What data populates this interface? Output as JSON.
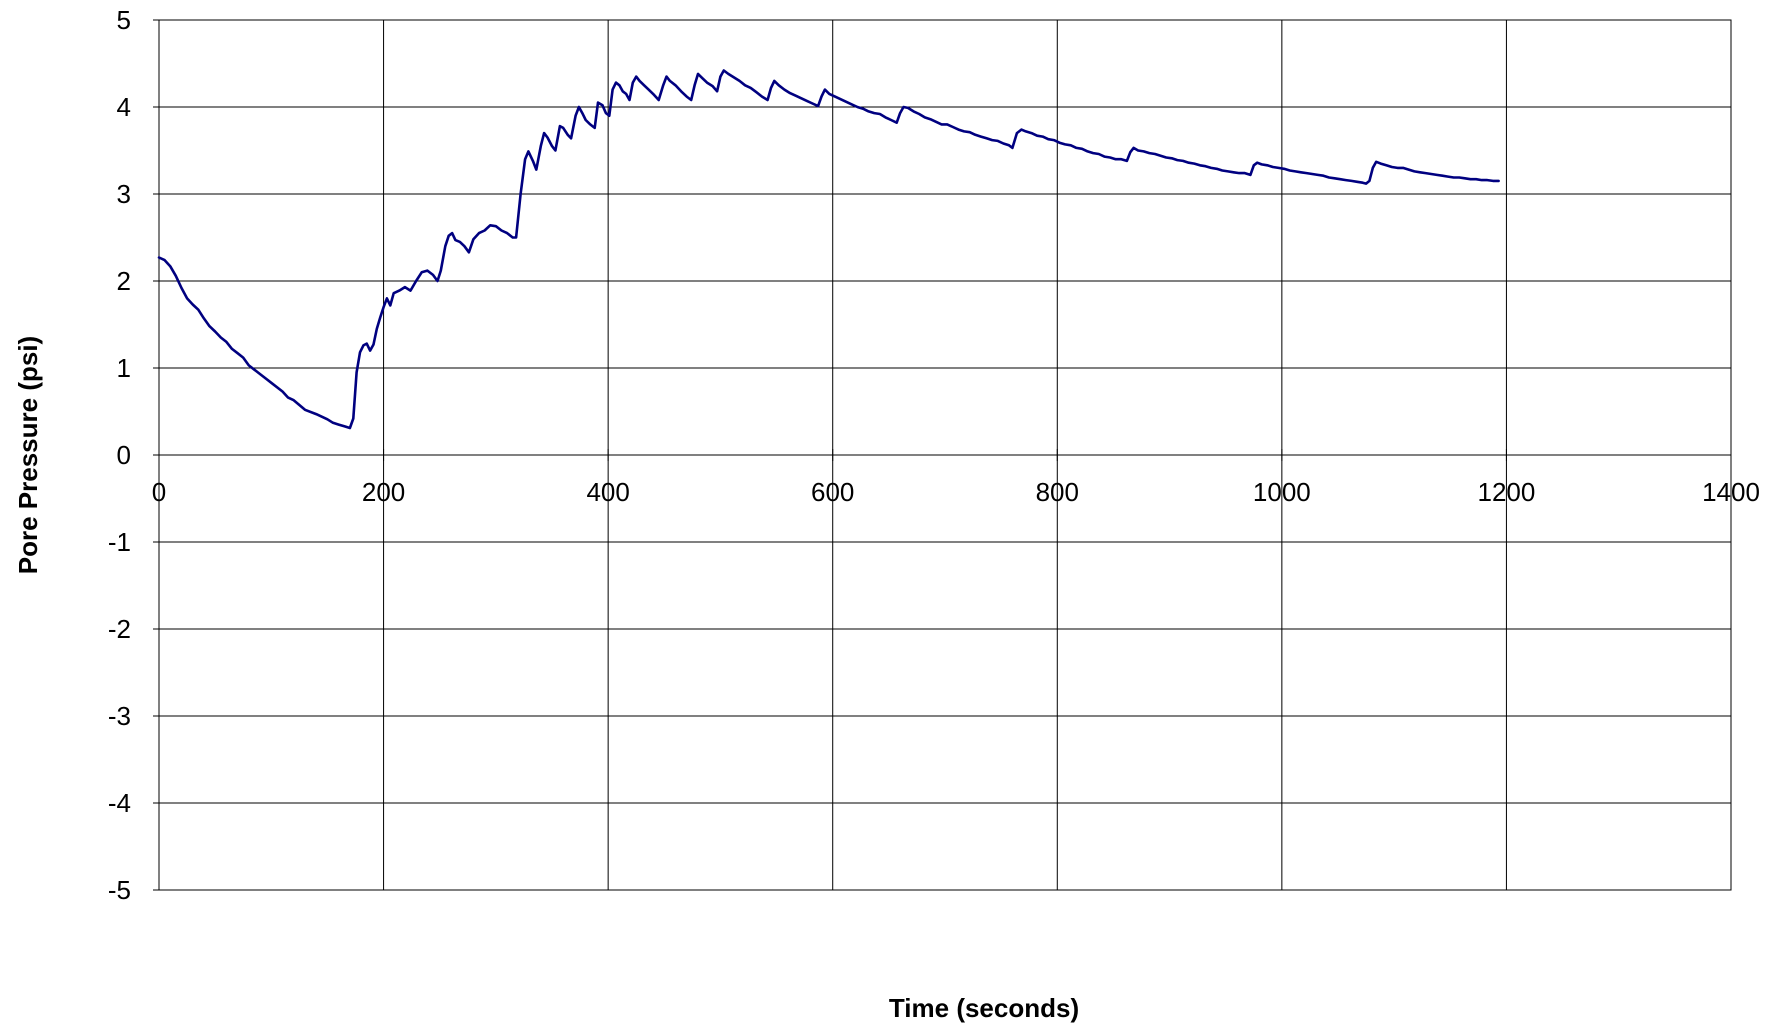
{
  "chart_data": {
    "type": "line",
    "title": "",
    "xlabel": "Time (seconds)",
    "ylabel": "Pore Pressure (psi)",
    "xlim": [
      0,
      1400
    ],
    "ylim": [
      -5,
      5
    ],
    "x_ticks": [
      0,
      200,
      400,
      600,
      800,
      1000,
      1200,
      1400
    ],
    "y_ticks": [
      5,
      4,
      3,
      2,
      1,
      0,
      -1,
      -2,
      -3,
      -4,
      -5
    ],
    "grid": true,
    "legend": "none",
    "series": [
      {
        "color": "#000080",
        "points": [
          [
            0,
            2.27
          ],
          [
            5,
            2.24
          ],
          [
            10,
            2.17
          ],
          [
            15,
            2.06
          ],
          [
            20,
            1.92
          ],
          [
            25,
            1.8
          ],
          [
            30,
            1.73
          ],
          [
            35,
            1.67
          ],
          [
            40,
            1.57
          ],
          [
            45,
            1.48
          ],
          [
            50,
            1.42
          ],
          [
            55,
            1.35
          ],
          [
            60,
            1.3
          ],
          [
            65,
            1.22
          ],
          [
            70,
            1.17
          ],
          [
            75,
            1.12
          ],
          [
            80,
            1.03
          ],
          [
            90,
            0.93
          ],
          [
            100,
            0.83
          ],
          [
            110,
            0.73
          ],
          [
            115,
            0.66
          ],
          [
            120,
            0.63
          ],
          [
            130,
            0.52
          ],
          [
            140,
            0.47
          ],
          [
            150,
            0.41
          ],
          [
            155,
            0.37
          ],
          [
            160,
            0.35
          ],
          [
            165,
            0.33
          ],
          [
            170,
            0.31
          ],
          [
            173,
            0.42
          ],
          [
            176,
            0.95
          ],
          [
            179,
            1.18
          ],
          [
            182,
            1.26
          ],
          [
            185,
            1.28
          ],
          [
            188,
            1.2
          ],
          [
            191,
            1.27
          ],
          [
            194,
            1.45
          ],
          [
            197,
            1.58
          ],
          [
            200,
            1.7
          ],
          [
            203,
            1.8
          ],
          [
            206,
            1.72
          ],
          [
            209,
            1.86
          ],
          [
            214,
            1.89
          ],
          [
            219,
            1.93
          ],
          [
            224,
            1.89
          ],
          [
            229,
            2.0
          ],
          [
            234,
            2.1
          ],
          [
            239,
            2.12
          ],
          [
            244,
            2.07
          ],
          [
            248,
            2.0
          ],
          [
            251,
            2.12
          ],
          [
            255,
            2.4
          ],
          [
            258,
            2.52
          ],
          [
            261,
            2.55
          ],
          [
            264,
            2.47
          ],
          [
            268,
            2.45
          ],
          [
            272,
            2.4
          ],
          [
            276,
            2.33
          ],
          [
            280,
            2.48
          ],
          [
            285,
            2.55
          ],
          [
            290,
            2.58
          ],
          [
            295,
            2.64
          ],
          [
            300,
            2.63
          ],
          [
            305,
            2.58
          ],
          [
            310,
            2.55
          ],
          [
            315,
            2.5
          ],
          [
            318,
            2.5
          ],
          [
            322,
            3.0
          ],
          [
            326,
            3.4
          ],
          [
            329,
            3.49
          ],
          [
            333,
            3.38
          ],
          [
            336,
            3.28
          ],
          [
            340,
            3.55
          ],
          [
            343,
            3.7
          ],
          [
            346,
            3.65
          ],
          [
            350,
            3.55
          ],
          [
            353,
            3.5
          ],
          [
            357,
            3.78
          ],
          [
            360,
            3.76
          ],
          [
            364,
            3.68
          ],
          [
            367,
            3.64
          ],
          [
            371,
            3.9
          ],
          [
            374,
            4.0
          ],
          [
            377,
            3.93
          ],
          [
            380,
            3.85
          ],
          [
            384,
            3.8
          ],
          [
            388,
            3.76
          ],
          [
            391,
            4.05
          ],
          [
            395,
            4.02
          ],
          [
            398,
            3.93
          ],
          [
            401,
            3.9
          ],
          [
            404,
            4.2
          ],
          [
            407,
            4.28
          ],
          [
            410,
            4.25
          ],
          [
            413,
            4.18
          ],
          [
            416,
            4.15
          ],
          [
            419,
            4.08
          ],
          [
            422,
            4.28
          ],
          [
            425,
            4.35
          ],
          [
            428,
            4.3
          ],
          [
            432,
            4.25
          ],
          [
            436,
            4.2
          ],
          [
            440,
            4.15
          ],
          [
            445,
            4.08
          ],
          [
            449,
            4.25
          ],
          [
            452,
            4.35
          ],
          [
            455,
            4.3
          ],
          [
            460,
            4.25
          ],
          [
            465,
            4.18
          ],
          [
            470,
            4.12
          ],
          [
            474,
            4.08
          ],
          [
            477,
            4.25
          ],
          [
            480,
            4.38
          ],
          [
            484,
            4.33
          ],
          [
            488,
            4.28
          ],
          [
            493,
            4.24
          ],
          [
            497,
            4.18
          ],
          [
            500,
            4.35
          ],
          [
            503,
            4.42
          ],
          [
            507,
            4.38
          ],
          [
            512,
            4.34
          ],
          [
            517,
            4.3
          ],
          [
            522,
            4.25
          ],
          [
            527,
            4.22
          ],
          [
            532,
            4.17
          ],
          [
            537,
            4.12
          ],
          [
            542,
            4.08
          ],
          [
            545,
            4.22
          ],
          [
            548,
            4.3
          ],
          [
            552,
            4.25
          ],
          [
            557,
            4.2
          ],
          [
            562,
            4.16
          ],
          [
            567,
            4.13
          ],
          [
            572,
            4.1
          ],
          [
            577,
            4.07
          ],
          [
            582,
            4.04
          ],
          [
            587,
            4.01
          ],
          [
            590,
            4.12
          ],
          [
            593,
            4.2
          ],
          [
            597,
            4.15
          ],
          [
            602,
            4.12
          ],
          [
            607,
            4.09
          ],
          [
            612,
            4.06
          ],
          [
            617,
            4.03
          ],
          [
            622,
            4.0
          ],
          [
            627,
            3.98
          ],
          [
            632,
            3.95
          ],
          [
            637,
            3.93
          ],
          [
            642,
            3.92
          ],
          [
            647,
            3.88
          ],
          [
            652,
            3.85
          ],
          [
            657,
            3.82
          ],
          [
            660,
            3.93
          ],
          [
            663,
            4.0
          ],
          [
            667,
            3.99
          ],
          [
            672,
            3.95
          ],
          [
            677,
            3.92
          ],
          [
            682,
            3.88
          ],
          [
            687,
            3.86
          ],
          [
            692,
            3.83
          ],
          [
            697,
            3.8
          ],
          [
            702,
            3.8
          ],
          [
            707,
            3.77
          ],
          [
            712,
            3.74
          ],
          [
            717,
            3.72
          ],
          [
            722,
            3.71
          ],
          [
            727,
            3.68
          ],
          [
            732,
            3.66
          ],
          [
            737,
            3.64
          ],
          [
            742,
            3.62
          ],
          [
            747,
            3.61
          ],
          [
            752,
            3.58
          ],
          [
            757,
            3.56
          ],
          [
            760,
            3.53
          ],
          [
            764,
            3.7
          ],
          [
            768,
            3.74
          ],
          [
            772,
            3.72
          ],
          [
            777,
            3.7
          ],
          [
            782,
            3.67
          ],
          [
            787,
            3.66
          ],
          [
            792,
            3.63
          ],
          [
            797,
            3.62
          ],
          [
            802,
            3.59
          ],
          [
            807,
            3.57
          ],
          [
            812,
            3.56
          ],
          [
            817,
            3.53
          ],
          [
            822,
            3.52
          ],
          [
            827,
            3.49
          ],
          [
            832,
            3.47
          ],
          [
            837,
            3.46
          ],
          [
            842,
            3.43
          ],
          [
            847,
            3.42
          ],
          [
            852,
            3.4
          ],
          [
            857,
            3.4
          ],
          [
            862,
            3.38
          ],
          [
            865,
            3.48
          ],
          [
            868,
            3.53
          ],
          [
            872,
            3.5
          ],
          [
            877,
            3.49
          ],
          [
            882,
            3.47
          ],
          [
            887,
            3.46
          ],
          [
            892,
            3.44
          ],
          [
            897,
            3.42
          ],
          [
            902,
            3.41
          ],
          [
            907,
            3.39
          ],
          [
            912,
            3.38
          ],
          [
            917,
            3.36
          ],
          [
            922,
            3.35
          ],
          [
            927,
            3.33
          ],
          [
            932,
            3.32
          ],
          [
            937,
            3.3
          ],
          [
            942,
            3.29
          ],
          [
            947,
            3.27
          ],
          [
            952,
            3.26
          ],
          [
            957,
            3.25
          ],
          [
            962,
            3.24
          ],
          [
            967,
            3.24
          ],
          [
            972,
            3.22
          ],
          [
            975,
            3.33
          ],
          [
            978,
            3.36
          ],
          [
            982,
            3.34
          ],
          [
            987,
            3.33
          ],
          [
            992,
            3.31
          ],
          [
            997,
            3.3
          ],
          [
            1002,
            3.29
          ],
          [
            1007,
            3.27
          ],
          [
            1012,
            3.26
          ],
          [
            1017,
            3.25
          ],
          [
            1022,
            3.24
          ],
          [
            1027,
            3.23
          ],
          [
            1032,
            3.22
          ],
          [
            1037,
            3.21
          ],
          [
            1042,
            3.19
          ],
          [
            1047,
            3.18
          ],
          [
            1052,
            3.17
          ],
          [
            1057,
            3.16
          ],
          [
            1062,
            3.15
          ],
          [
            1067,
            3.14
          ],
          [
            1072,
            3.13
          ],
          [
            1075,
            3.12
          ],
          [
            1078,
            3.15
          ],
          [
            1081,
            3.3
          ],
          [
            1084,
            3.37
          ],
          [
            1088,
            3.35
          ],
          [
            1093,
            3.33
          ],
          [
            1098,
            3.31
          ],
          [
            1103,
            3.3
          ],
          [
            1108,
            3.3
          ],
          [
            1113,
            3.28
          ],
          [
            1118,
            3.26
          ],
          [
            1123,
            3.25
          ],
          [
            1128,
            3.24
          ],
          [
            1133,
            3.23
          ],
          [
            1138,
            3.22
          ],
          [
            1143,
            3.21
          ],
          [
            1148,
            3.2
          ],
          [
            1153,
            3.19
          ],
          [
            1158,
            3.19
          ],
          [
            1163,
            3.18
          ],
          [
            1168,
            3.17
          ],
          [
            1173,
            3.17
          ],
          [
            1178,
            3.16
          ],
          [
            1183,
            3.16
          ],
          [
            1188,
            3.15
          ],
          [
            1193,
            3.15
          ]
        ]
      }
    ]
  }
}
